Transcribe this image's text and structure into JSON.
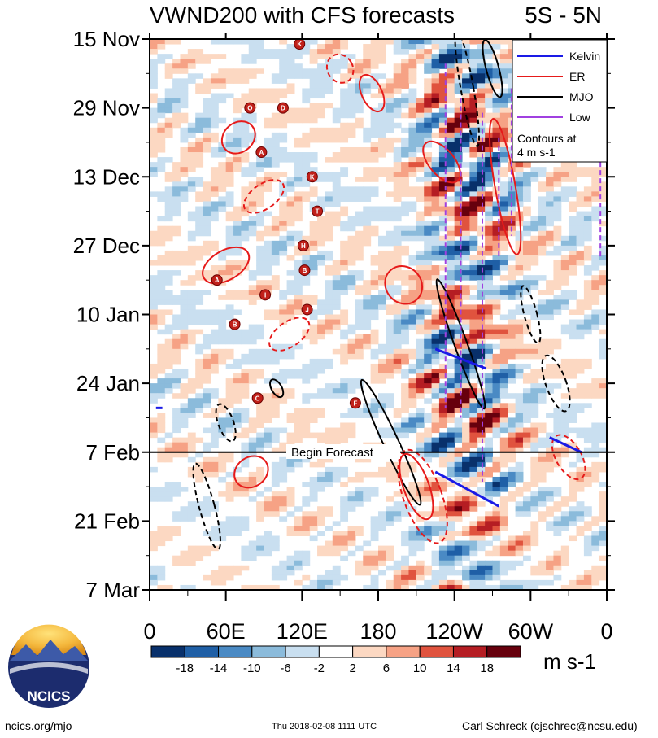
{
  "chart_data": {
    "type": "heatmap",
    "title": "VWND200 with CFS forecasts",
    "region": "5S - 5N",
    "y_axis": {
      "label": "",
      "ticks": [
        "15 Nov",
        "29 Nov",
        "13 Dec",
        "27 Dec",
        "10 Jan",
        "24 Jan",
        "7 Feb",
        "21 Feb",
        "7 Mar"
      ],
      "range_days": [
        0,
        112
      ]
    },
    "x_axis": {
      "label": "",
      "ticks": [
        "0",
        "60E",
        "120E",
        "180",
        "120W",
        "60W",
        "0"
      ],
      "range_deg_east": [
        0,
        360
      ]
    },
    "forecast_marker": {
      "label": "Begin Forecast",
      "day": 84
    },
    "legend": {
      "title": "",
      "placement": "top-right",
      "entries": [
        {
          "name": "Kelvin",
          "color": "#1a1ae6"
        },
        {
          "name": "ER",
          "color": "#e61a1a"
        },
        {
          "name": "MJO",
          "color": "#000000"
        },
        {
          "name": "Low",
          "color": "#a040e0"
        }
      ],
      "note": "Contours at 4 m s-1"
    },
    "colorbar": {
      "labels": [
        "-18",
        "-14",
        "-10",
        "-6",
        "-2",
        "2",
        "6",
        "10",
        "14",
        "18"
      ],
      "colors": [
        "#08306b",
        "#1f5fa6",
        "#4a8ac4",
        "#8bbbdb",
        "#c9dff0",
        "#ffffff",
        "#fcd8c2",
        "#f6a285",
        "#e0533e",
        "#b51d23",
        "#67000d"
      ],
      "units": "m s-1"
    },
    "tc_symbols": [
      {
        "letter": "K",
        "lon": 118,
        "day": 1
      },
      {
        "letter": "O",
        "lon": 79,
        "day": 14
      },
      {
        "letter": "D",
        "lon": 105,
        "day": 14
      },
      {
        "letter": "A",
        "lon": 88,
        "day": 23
      },
      {
        "letter": "K",
        "lon": 128,
        "day": 28
      },
      {
        "letter": "T",
        "lon": 132,
        "day": 35
      },
      {
        "letter": "H",
        "lon": 121,
        "day": 42
      },
      {
        "letter": "B",
        "lon": 122,
        "day": 47
      },
      {
        "letter": "A",
        "lon": 53,
        "day": 49
      },
      {
        "letter": "I",
        "lon": 91,
        "day": 52
      },
      {
        "letter": "J",
        "lon": 124,
        "day": 55
      },
      {
        "letter": "B",
        "lon": 67,
        "day": 58
      },
      {
        "letter": "C",
        "lon": 85,
        "day": 73
      },
      {
        "letter": "F",
        "lon": 162,
        "day": 74
      }
    ],
    "field_description": "200-hPa meridional wind anomaly, averaged 5S-5N, with Kelvin, equatorial Rossby (ER), MJO and low-frequency filtered contours at 4 m s-1; solid positive, dashed negative"
  },
  "footer": {
    "left": "ncics.org/mjo",
    "center": "Thu 2018-02-08 1111 UTC",
    "right": "Carl Schreck (cjschrec@ncsu.edu)"
  },
  "logo": {
    "text": "NCICS"
  }
}
